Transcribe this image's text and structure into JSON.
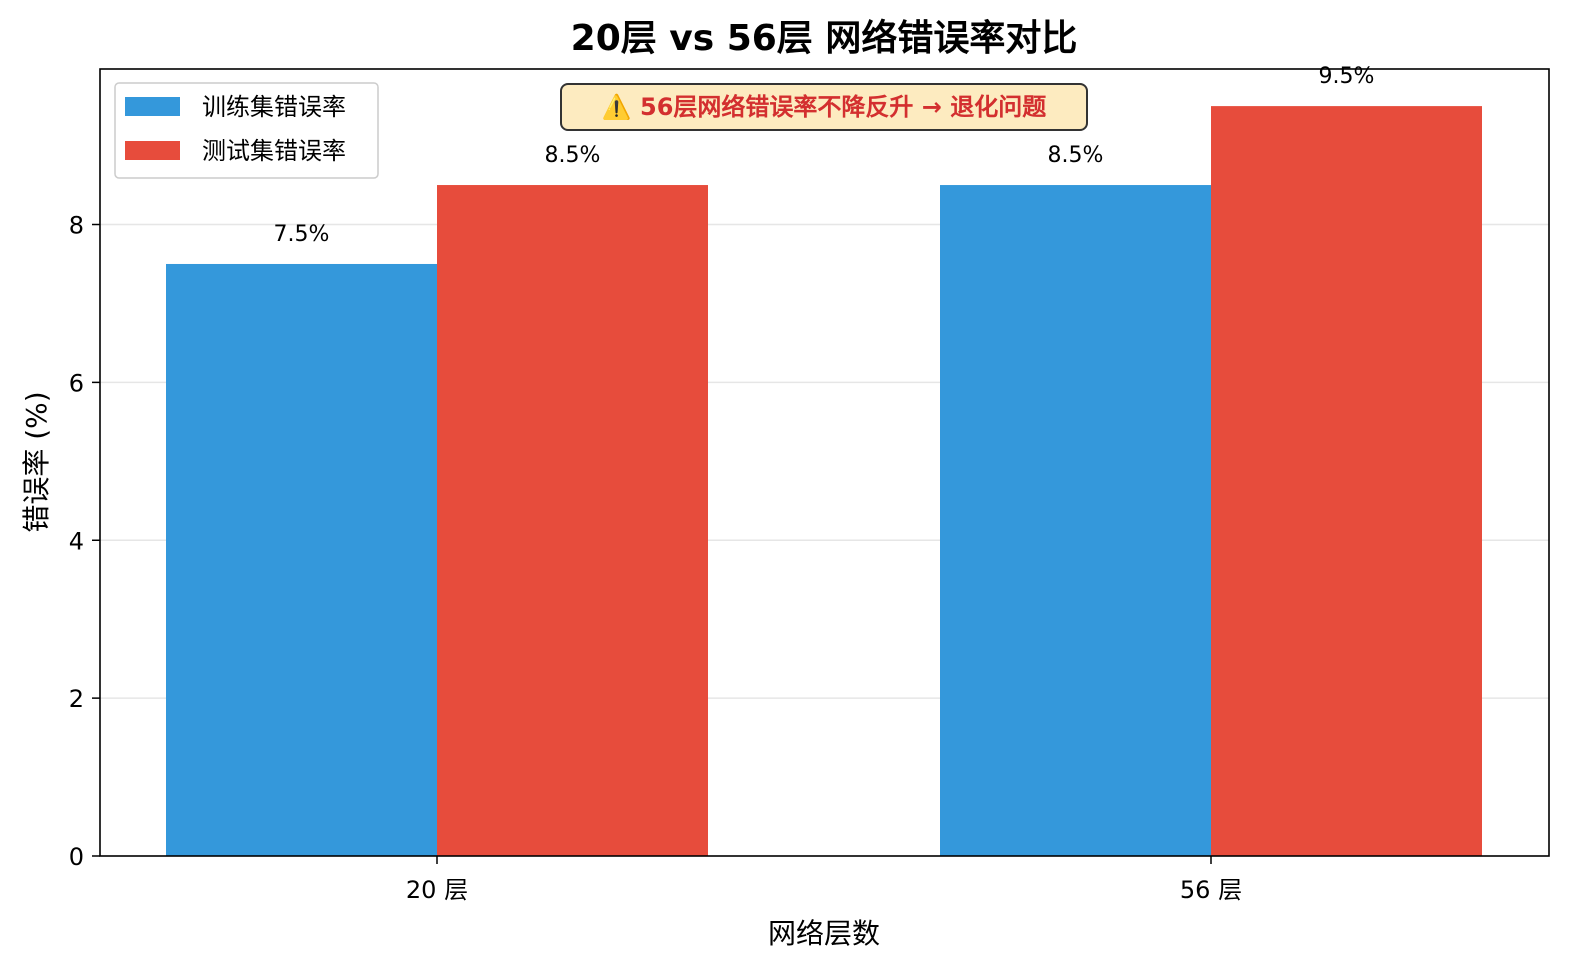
{
  "chart_data": {
    "type": "bar",
    "title": "20层 vs 56层 网络错误率对比",
    "xlabel": "网络层数",
    "ylabel": "错误率 (%)",
    "categories": [
      "20 层",
      "56 层"
    ],
    "series": [
      {
        "name": "训练集错误率",
        "values": [
          7.5,
          8.5
        ],
        "color": "#3498db"
      },
      {
        "name": "测试集错误率",
        "values": [
          8.5,
          9.5
        ],
        "color": "#e74c3c"
      }
    ],
    "data_labels": [
      [
        "7.5%",
        "8.5%"
      ],
      [
        "8.5%",
        "9.5%"
      ]
    ],
    "ylim": [
      0,
      9.97
    ],
    "yticks": [
      0,
      2,
      4,
      6,
      8
    ],
    "ytick_labels": [
      "0",
      "2",
      "4",
      "6",
      "8"
    ],
    "grid": "horizontal",
    "legend_position": "upper-left",
    "annotation": {
      "text": "⚠️ 56层网络错误率不降反升 → 退化问题",
      "text_color": "#d32f2f",
      "background": "#fdebc0",
      "border": "#333333"
    }
  }
}
